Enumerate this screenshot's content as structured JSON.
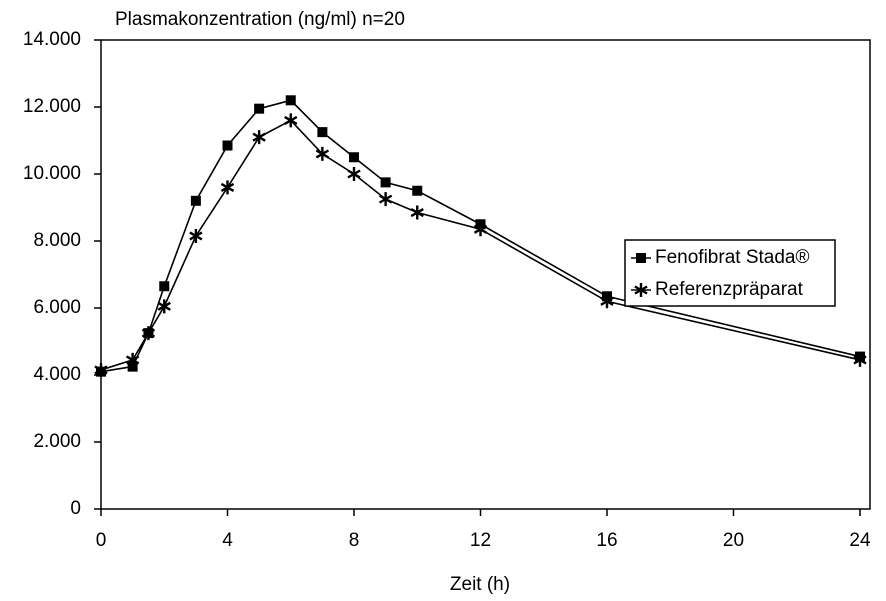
{
  "chart_data": {
    "type": "line",
    "title": "Plasmakonzentration (ng/ml) n=20",
    "x_label": "Zeit (h)",
    "x": [
      0,
      1,
      1.5,
      2,
      3,
      4,
      5,
      6,
      7,
      8,
      9,
      10,
      12,
      16,
      24
    ],
    "series": [
      {
        "name": "Fenofibrat Stada®",
        "color": "#000000",
        "marker": "square",
        "values": [
          4100,
          4250,
          5250,
          6650,
          9200,
          10850,
          11950,
          12200,
          11250,
          10500,
          9750,
          9500,
          8500,
          6350,
          4550
        ]
      },
      {
        "name": "Referenzpräparat",
        "color": "#000000",
        "marker": "star",
        "values": [
          4150,
          4450,
          5250,
          6050,
          8150,
          9600,
          11100,
          11600,
          10600,
          10000,
          9250,
          8850,
          8350,
          6200,
          4450
        ]
      }
    ],
    "xlim": [
      0,
      24
    ],
    "xticks": [
      0,
      4,
      8,
      12,
      16,
      20,
      24
    ],
    "ylim": [
      0,
      14000
    ],
    "yticks": [
      0,
      {
        "value": 2000,
        "label": "2.000"
      },
      {
        "value": 4000,
        "label": "4.000"
      },
      {
        "value": 6000,
        "label": "6.000"
      },
      {
        "value": 8000,
        "label": "8.000"
      },
      {
        "value": 10000,
        "label": "10.000"
      },
      {
        "value": 12000,
        "label": "12.000"
      },
      {
        "value": 14000,
        "label": "14.000"
      }
    ],
    "grid": false,
    "legend": "right"
  }
}
